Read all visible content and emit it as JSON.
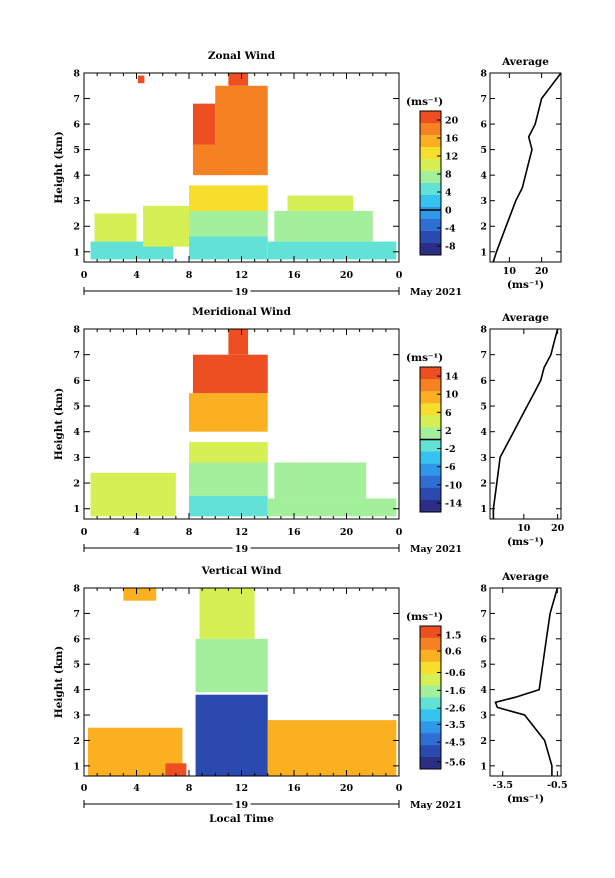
{
  "common": {
    "ylabel": "Height (km)",
    "time_ticks": [
      "0",
      "4",
      "8",
      "12",
      "16",
      "20",
      "0"
    ],
    "day_label": "19",
    "month_label": "May 2021",
    "xlabel_bottom": "Local Time",
    "average_title": "Average",
    "cbar_unit": "(ms⁻¹)",
    "avg_unit": "(ms⁻¹)"
  },
  "chart_data": [
    {
      "type": "heatmap",
      "title": "Zonal Wind",
      "xlabel": "",
      "ylabel": "Height (km)",
      "x_range_hours": [
        0,
        24
      ],
      "y_range_km": [
        0.6,
        8
      ],
      "y_ticks": [
        "1",
        "2",
        "3",
        "4",
        "5",
        "6",
        "7",
        "8"
      ],
      "colorbar": {
        "unit": "(ms⁻¹)",
        "ticks": [
          "20",
          "16",
          "12",
          "8",
          "4",
          "0",
          "-4",
          "-8"
        ],
        "range": [
          -10,
          22
        ],
        "zero_line": 0
      },
      "regions": [
        {
          "t0": 0.5,
          "t1": 6.8,
          "z0": 0.7,
          "z1": 1.4,
          "v": 5
        },
        {
          "t0": 0.8,
          "t1": 4.0,
          "z0": 1.4,
          "z1": 2.5,
          "v": 10
        },
        {
          "t0": 4.5,
          "t1": 8.0,
          "z0": 1.2,
          "z1": 2.8,
          "v": 11
        },
        {
          "t0": 8.0,
          "t1": 14.0,
          "z0": 0.7,
          "z1": 1.6,
          "v": 4
        },
        {
          "t0": 8.0,
          "t1": 14.0,
          "z0": 1.6,
          "z1": 2.6,
          "v": 8
        },
        {
          "t0": 8.0,
          "t1": 14.0,
          "z0": 2.6,
          "z1": 3.6,
          "v": 13
        },
        {
          "t0": 8.3,
          "t1": 14.0,
          "z0": 4.0,
          "z1": 5.2,
          "v": 17
        },
        {
          "t0": 8.3,
          "t1": 10.0,
          "z0": 5.2,
          "z1": 6.8,
          "v": 20
        },
        {
          "t0": 10.0,
          "t1": 14.0,
          "z0": 5.2,
          "z1": 7.5,
          "v": 19
        },
        {
          "t0": 11.0,
          "t1": 12.5,
          "z0": 7.5,
          "z1": 8.0,
          "v": 21
        },
        {
          "t0": 4.1,
          "t1": 4.6,
          "z0": 7.6,
          "z1": 7.9,
          "v": 21
        },
        {
          "t0": 14.0,
          "t1": 23.8,
          "z0": 0.7,
          "z1": 1.4,
          "v": 5
        },
        {
          "t0": 14.5,
          "t1": 22.0,
          "z0": 1.4,
          "z1": 2.6,
          "v": 7
        },
        {
          "t0": 15.5,
          "t1": 20.5,
          "z0": 2.6,
          "z1": 3.2,
          "v": 9
        }
      ],
      "average_profile": {
        "xlabel": "(ms⁻¹)",
        "x_ticks": [
          "10",
          "20"
        ],
        "x_range": [
          4,
          26
        ],
        "height_km": [
          0.6,
          1.0,
          2.0,
          3.0,
          3.5,
          4.0,
          4.5,
          5.0,
          5.5,
          6.0,
          6.5,
          7.0,
          7.5,
          8.0
        ],
        "value": [
          5,
          6,
          9,
          12,
          14,
          15,
          16,
          17,
          16,
          18,
          19,
          20,
          23,
          26
        ]
      }
    },
    {
      "type": "heatmap",
      "title": "Meridional Wind",
      "xlabel": "",
      "ylabel": "Height (km)",
      "x_range_hours": [
        0,
        24
      ],
      "y_range_km": [
        0.6,
        8
      ],
      "y_ticks": [
        "1",
        "2",
        "3",
        "4",
        "5",
        "6",
        "7",
        "8"
      ],
      "colorbar": {
        "unit": "(ms⁻¹)",
        "ticks": [
          "14",
          "10",
          "6",
          "2",
          "-2",
          "-6",
          "-10",
          "-14"
        ],
        "range": [
          -16,
          16
        ],
        "zero_line": 0
      },
      "regions": [
        {
          "t0": 0.5,
          "t1": 7.0,
          "z0": 0.7,
          "z1": 2.4,
          "v": 3
        },
        {
          "t0": 8.0,
          "t1": 14.0,
          "z0": 0.7,
          "z1": 1.5,
          "v": -1
        },
        {
          "t0": 8.0,
          "t1": 14.0,
          "z0": 1.5,
          "z1": 2.8,
          "v": 2
        },
        {
          "t0": 8.0,
          "t1": 14.0,
          "z0": 2.8,
          "z1": 3.6,
          "v": 5
        },
        {
          "t0": 8.0,
          "t1": 14.0,
          "z0": 4.0,
          "z1": 5.5,
          "v": 10
        },
        {
          "t0": 8.3,
          "t1": 14.0,
          "z0": 5.5,
          "z1": 7.0,
          "v": 14
        },
        {
          "t0": 11.0,
          "t1": 12.5,
          "z0": 7.0,
          "z1": 8.0,
          "v": 15
        },
        {
          "t0": 14.0,
          "t1": 23.8,
          "z0": 0.7,
          "z1": 1.4,
          "v": 1
        },
        {
          "t0": 14.5,
          "t1": 21.5,
          "z0": 1.4,
          "z1": 2.8,
          "v": 2
        }
      ],
      "average_profile": {
        "xlabel": "(ms⁻¹)",
        "x_ticks": [
          "10",
          "20"
        ],
        "x_range": [
          0,
          21
        ],
        "height_km": [
          0.6,
          1.0,
          2.0,
          3.0,
          3.5,
          4.0,
          4.5,
          5.0,
          5.5,
          6.0,
          6.5,
          7.0,
          7.5,
          8.0
        ],
        "value": [
          1,
          1,
          2,
          3,
          5,
          7,
          9,
          11,
          13,
          15,
          16,
          18,
          19,
          20
        ]
      }
    },
    {
      "type": "heatmap",
      "title": "Vertical Wind",
      "xlabel": "Local Time",
      "ylabel": "Height (km)",
      "x_range_hours": [
        0,
        24
      ],
      "y_range_km": [
        0.6,
        8
      ],
      "y_ticks": [
        "1",
        "2",
        "3",
        "4",
        "5",
        "6",
        "7",
        "8"
      ],
      "colorbar": {
        "unit": "(ms⁻¹)",
        "ticks": [
          "1.5",
          "0.6",
          "-0.6",
          "-1.6",
          "-2.6",
          "-3.5",
          "-4.5",
          "-5.6"
        ],
        "range": [
          -6,
          2
        ],
        "zero_line": null
      },
      "regions": [
        {
          "t0": 0.3,
          "t1": 7.5,
          "z0": 0.6,
          "z1": 2.5,
          "v": 0.4
        },
        {
          "t0": 6.2,
          "t1": 7.8,
          "z0": 0.6,
          "z1": 1.1,
          "v": 1.7
        },
        {
          "t0": 8.5,
          "t1": 14.0,
          "z0": 0.6,
          "z1": 3.8,
          "v": -5.3
        },
        {
          "t0": 8.5,
          "t1": 14.0,
          "z0": 3.9,
          "z1": 6.0,
          "v": -1.6
        },
        {
          "t0": 8.8,
          "t1": 13.0,
          "z0": 6.0,
          "z1": 8.0,
          "v": -1.1
        },
        {
          "t0": 14.0,
          "t1": 23.8,
          "z0": 0.6,
          "z1": 2.8,
          "v": 0.3
        },
        {
          "t0": 3.0,
          "t1": 5.5,
          "z0": 7.5,
          "z1": 8.0,
          "v": 0.5
        }
      ],
      "average_profile": {
        "xlabel": "(ms⁻¹)",
        "x_ticks": [
          "-3.5",
          "-0.5"
        ],
        "x_range": [
          -4.2,
          -0.3
        ],
        "height_km": [
          0.6,
          1.0,
          2.0,
          3.0,
          3.3,
          3.5,
          3.7,
          4.0,
          5.0,
          6.0,
          7.0,
          8.0
        ],
        "value": [
          -0.8,
          -0.8,
          -1.2,
          -2.3,
          -3.8,
          -3.9,
          -2.8,
          -1.5,
          -1.3,
          -1.1,
          -0.9,
          -0.5
        ]
      }
    }
  ]
}
